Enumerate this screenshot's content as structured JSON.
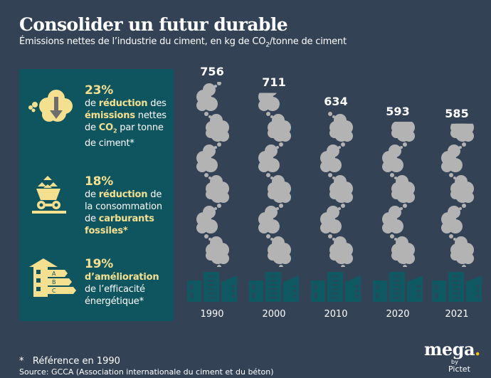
{
  "header": {
    "title": "Consolider un futur durable",
    "subtitle_pre": "Émissions nettes de l’industrie du ciment, en kg de CO",
    "subtitle_sub": "2",
    "subtitle_post": "/tonne de ciment"
  },
  "stats": [
    {
      "icon": "cloud-down-arrow-icon",
      "percent": "23%",
      "parts": [
        {
          "t": "de ",
          "h": false
        },
        {
          "t": "réduction",
          "h": true
        },
        {
          "t": " des ",
          "h": false
        },
        {
          "t": "émissions",
          "h": true
        },
        {
          "t": " nettes de ",
          "h": false
        },
        {
          "t": "CO",
          "h": true,
          "sub": "2"
        },
        {
          "t": " par tonne de ciment*",
          "h": false
        }
      ]
    },
    {
      "icon": "mine-cart-icon",
      "percent": "18%",
      "parts": [
        {
          "t": "de ",
          "h": false
        },
        {
          "t": "réduction",
          "h": true
        },
        {
          "t": " de la consommation de ",
          "h": false
        },
        {
          "t": "carburants fossiles*",
          "h": true
        }
      ]
    },
    {
      "icon": "energy-rating-house-icon",
      "percent": "19%",
      "parts": [
        {
          "t": "d’amélioration",
          "h": true
        },
        {
          "t": " de l’efficacité énergétique*",
          "h": false
        }
      ],
      "rating_letters": [
        "A",
        "B",
        "C"
      ]
    }
  ],
  "chart_data": {
    "type": "bar",
    "title": "Consolider un futur durable",
    "subtitle": "Émissions nettes de l’industrie du ciment, en kg de CO2/tonne de ciment",
    "xlabel": "",
    "ylabel": "kg de CO2/tonne de ciment",
    "categories": [
      "1990",
      "2000",
      "2010",
      "2020",
      "2021"
    ],
    "values": [
      756,
      711,
      634,
      593,
      585
    ],
    "value_labels": [
      "756",
      "711",
      "634",
      "593",
      "585"
    ],
    "mark_style": "pictogram smoke clouds above factory buildings",
    "grid": false
  },
  "footer": {
    "footnote_marker": "*",
    "footnote": "Référence en 1990",
    "source": "Source: GCCA (Association internationale du ciment et du béton)"
  },
  "logo": {
    "name": "mega",
    "dot": ".",
    "by": "by",
    "brand": "Pictet"
  },
  "colors": {
    "background": "#344256",
    "panel": "#0f5560",
    "accent": "#f5e08f",
    "smoke": "#b3b3b3",
    "building": "#0f5a62",
    "logo_dot": "#f5c400"
  }
}
